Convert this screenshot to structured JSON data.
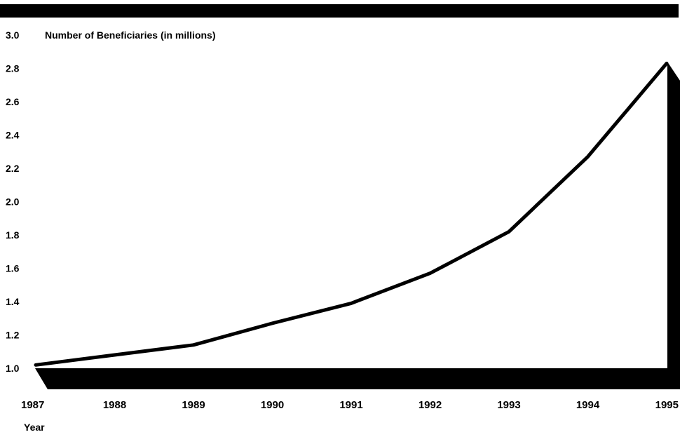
{
  "chart_data": {
    "type": "line",
    "title": "Number of Beneficiaries (in millions)",
    "xlabel": "Year",
    "ylabel": "Number of Beneficiaries (in millions)",
    "x": [
      "1987",
      "1988",
      "1989",
      "1990",
      "1991",
      "1992",
      "1993",
      "1994",
      "1995"
    ],
    "series": [
      {
        "values": [
          1.02,
          1.08,
          1.14,
          1.27,
          1.39,
          1.57,
          1.82,
          2.27,
          2.83
        ]
      }
    ],
    "ylim": [
      1.0,
      3.0
    ],
    "yticks": [
      "1.0",
      "1.2",
      "1.4",
      "1.6",
      "1.8",
      "2.0",
      "2.2",
      "2.4",
      "2.6",
      "2.8",
      "3.0"
    ],
    "grid": false,
    "legend": "none",
    "colors": {
      "line": "#000000",
      "frame": "#000000",
      "background": "#ffffff"
    }
  }
}
